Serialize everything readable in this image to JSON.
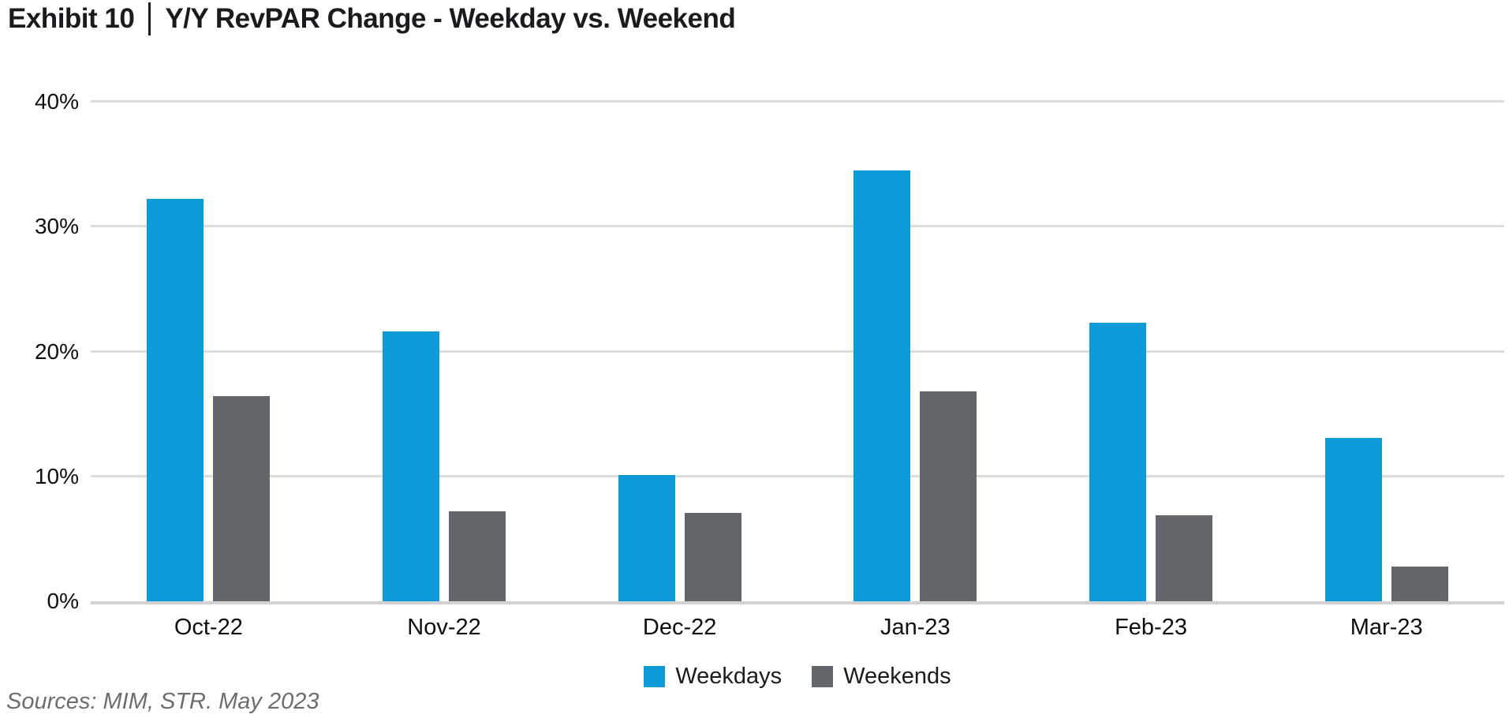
{
  "title": {
    "exhibit": "Exhibit 10",
    "text": "Y/Y RevPAR Change - Weekday vs. Weekend"
  },
  "chart_data": {
    "type": "bar",
    "title": "Exhibit 10 | Y/Y RevPAR Change - Weekday vs. Weekend",
    "categories": [
      "Oct-22",
      "Nov-22",
      "Dec-22",
      "Jan-23",
      "Feb-23",
      "Mar-23"
    ],
    "series": [
      {
        "name": "Weekdays",
        "color": "#0e9ad6",
        "values": [
          32.2,
          21.6,
          10.1,
          34.5,
          22.3,
          13.1
        ]
      },
      {
        "name": "Weekends",
        "color": "#63666a",
        "values": [
          16.4,
          7.2,
          7.1,
          16.8,
          6.9,
          2.8
        ]
      }
    ],
    "xlabel": "",
    "ylabel": "",
    "ylim": [
      0,
      40
    ],
    "yticks": [
      0,
      10,
      20,
      30,
      40
    ],
    "ytick_labels": [
      "0%",
      "10%",
      "20%",
      "30%",
      "40%"
    ],
    "grid": true,
    "legend_position": "bottom-center",
    "colors": {
      "weekdays_blue": "#0e9ad6",
      "weekends_gray": "#63666a",
      "gridline": "#dcdcdc",
      "axis_baseline": "#d2d2d2",
      "text": "#1b1b1f",
      "source_text": "#6b6e71"
    }
  },
  "source": "Sources: MIM, STR. May 2023"
}
